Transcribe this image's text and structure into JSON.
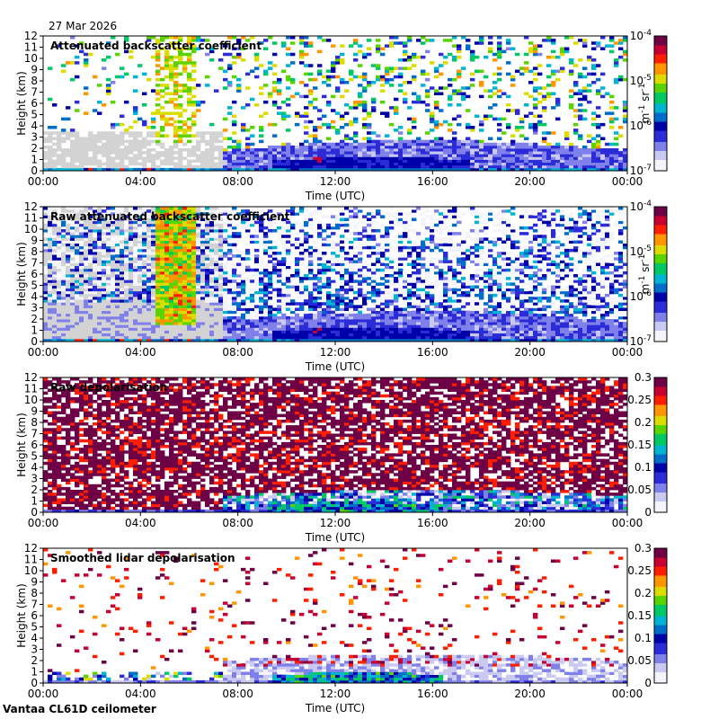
{
  "date": "27 Mar 2026",
  "footer": "Vantaa CL61D ceilometer",
  "colors": {
    "background": "#ffffff",
    "low_signal_grey": "#d3d3d3",
    "colormap": [
      "#f4f4fb",
      "#c9c9f2",
      "#8080ea",
      "#2b2bd8",
      "#0000a8",
      "#006ec8",
      "#00b4d2",
      "#00c864",
      "#5ad400",
      "#dcdc00",
      "#ff9600",
      "#ff1e00",
      "#c80032",
      "#6e0046"
    ]
  },
  "chart_data": [
    {
      "type": "heatmap",
      "title": "Attenuated backscatter coefficient",
      "xlabel": "Time (UTC)",
      "ylabel": "Height (km)",
      "x_ticks": [
        "00:00",
        "04:00",
        "08:00",
        "12:00",
        "16:00",
        "20:00",
        "00:00"
      ],
      "x_range_hours": [
        0,
        24
      ],
      "y_ticks": [
        0,
        1,
        2,
        3,
        4,
        5,
        6,
        7,
        8,
        9,
        10,
        11,
        12
      ],
      "ylim_km": [
        0,
        12
      ],
      "colorbar": {
        "scale": "log",
        "min": 1e-07,
        "max": 0.0001,
        "tick_labels": [
          "10-4",
          "10-5",
          "10-6",
          "10-7"
        ],
        "tick_values": [
          0.0001,
          1e-05,
          1e-06,
          1e-07
        ],
        "label": "m-1 sr-1"
      },
      "pattern": "filtered"
    },
    {
      "type": "heatmap",
      "title": "Raw attenuated backscatter coefficient",
      "xlabel": "Time (UTC)",
      "ylabel": "Height (km)",
      "x_ticks": [
        "00:00",
        "04:00",
        "08:00",
        "12:00",
        "16:00",
        "20:00",
        "00:00"
      ],
      "x_range_hours": [
        0,
        24
      ],
      "y_ticks": [
        0,
        1,
        2,
        3,
        4,
        5,
        6,
        7,
        8,
        9,
        10,
        11,
        12
      ],
      "ylim_km": [
        0,
        12
      ],
      "colorbar": {
        "scale": "log",
        "min": 1e-07,
        "max": 0.0001,
        "tick_labels": [
          "10-4",
          "10-5",
          "10-6",
          "10-7"
        ],
        "tick_values": [
          0.0001,
          1e-05,
          1e-06,
          1e-07
        ],
        "label": "m-1 sr-1"
      },
      "pattern": "raw"
    },
    {
      "type": "heatmap",
      "title": "Raw depolarisation",
      "xlabel": "Time (UTC)",
      "ylabel": "Height (km)",
      "x_ticks": [
        "00:00",
        "04:00",
        "08:00",
        "12:00",
        "16:00",
        "20:00",
        "00:00"
      ],
      "x_range_hours": [
        0,
        24
      ],
      "y_ticks": [
        0,
        1,
        2,
        3,
        4,
        5,
        6,
        7,
        8,
        9,
        10,
        11,
        12
      ],
      "ylim_km": [
        0,
        12
      ],
      "colorbar": {
        "scale": "linear",
        "min": 0,
        "max": 0.3,
        "tick_labels": [
          "0.3",
          "0.25",
          "0.2",
          "0.15",
          "0.1",
          "0.05",
          "0"
        ],
        "tick_values": [
          0.3,
          0.25,
          0.2,
          0.15,
          0.1,
          0.05,
          0
        ],
        "label": ""
      },
      "pattern": "rawdepol"
    },
    {
      "type": "heatmap",
      "title": "Smoothed lidar depolarisation",
      "xlabel": "Time (UTC)",
      "ylabel": "Height (km)",
      "x_ticks": [
        "00:00",
        "04:00",
        "08:00",
        "12:00",
        "16:00",
        "20:00",
        "00:00"
      ],
      "x_range_hours": [
        0,
        24
      ],
      "y_ticks": [
        0,
        1,
        2,
        3,
        4,
        5,
        6,
        7,
        8,
        9,
        10,
        11,
        12
      ],
      "ylim_km": [
        0,
        12
      ],
      "colorbar": {
        "scale": "linear",
        "min": 0,
        "max": 0.3,
        "tick_labels": [
          "0.3",
          "0.25",
          "0.2",
          "0.15",
          "0.1",
          "0.05",
          "0"
        ],
        "tick_values": [
          0.3,
          0.25,
          0.2,
          0.15,
          0.1,
          0.05,
          0
        ],
        "label": ""
      },
      "pattern": "smoothdepol"
    }
  ]
}
